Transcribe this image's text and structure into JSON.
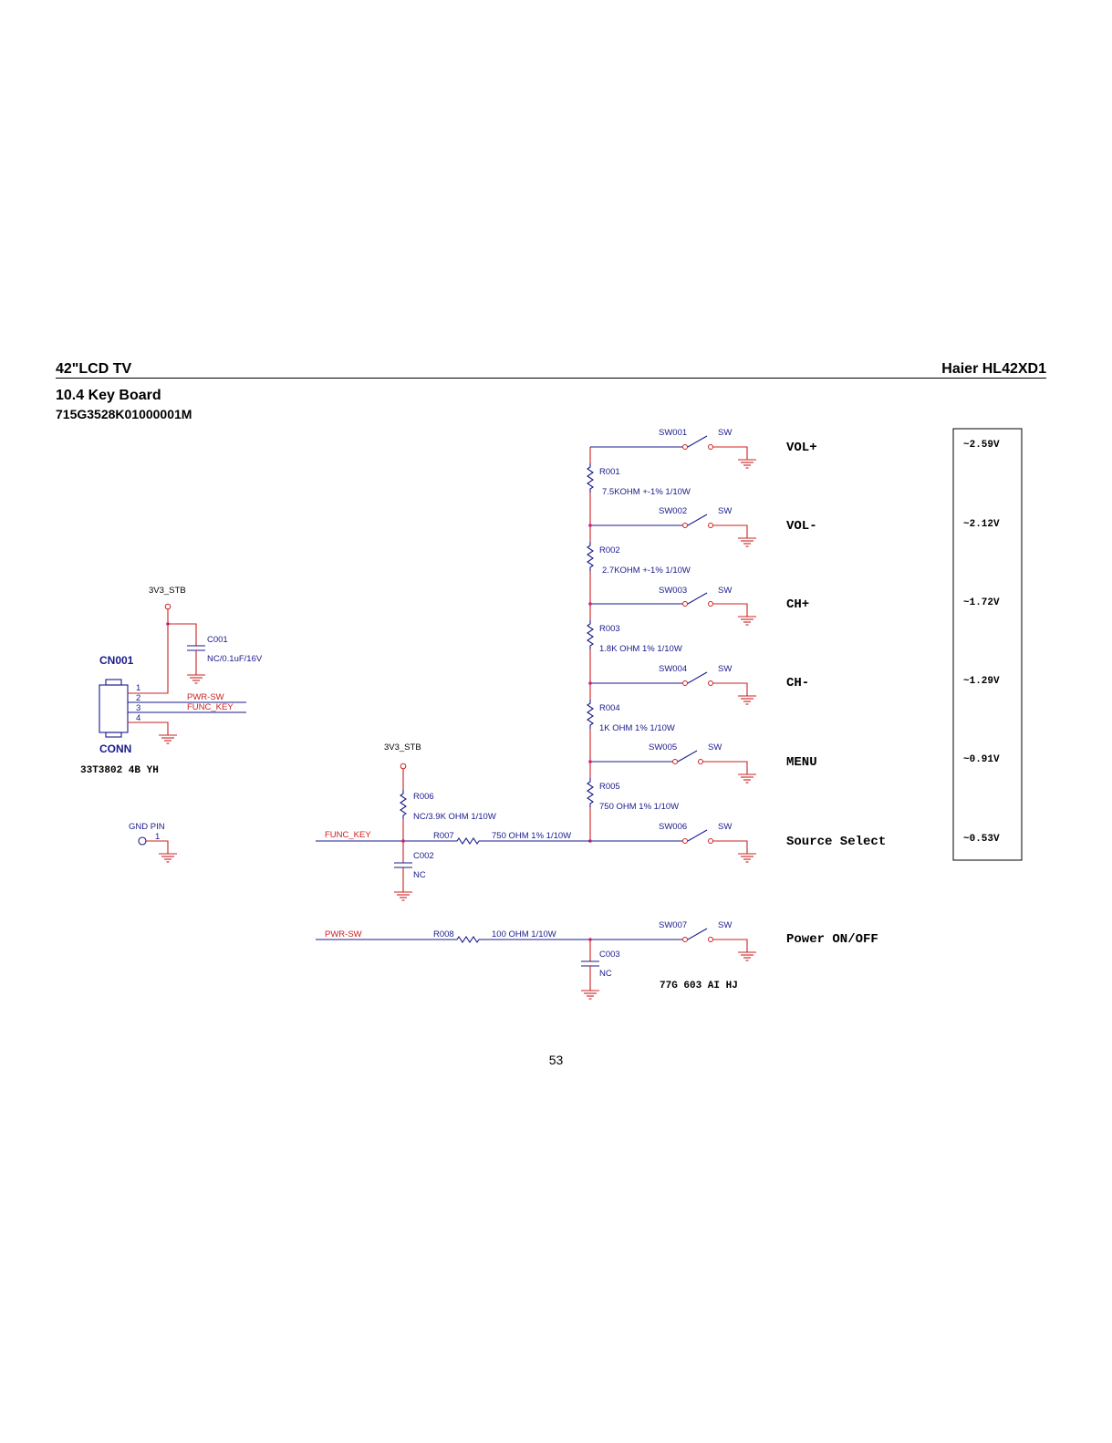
{
  "header": {
    "left": "42\"LCD TV",
    "right": "Haier HL42XD1"
  },
  "section": {
    "title": "10.4 Key Board",
    "part_number": "715G3528K01000001M"
  },
  "page_number": "53",
  "nets": {
    "v3_stb_a": "3V3_STB",
    "v3_stb_b": "3V3_STB",
    "pwr_sw_a": "PWR-SW",
    "func_key_a": "FUNC_KEY",
    "func_key_b": "FUNC_KEY",
    "pwr_sw_b": "PWR-SW"
  },
  "connector": {
    "ref": "CN001",
    "type": "CONN",
    "part": "33T3802 4B YH",
    "pins": [
      "1",
      "2",
      "3",
      "4"
    ]
  },
  "gnd_pin": {
    "label": "GND PIN",
    "pin": "1"
  },
  "capacitors": {
    "c001": {
      "ref": "C001",
      "value": "NC/0.1uF/16V"
    },
    "c002": {
      "ref": "C002",
      "value": "NC"
    },
    "c003": {
      "ref": "C003",
      "value": "NC"
    }
  },
  "resistors": {
    "r001": {
      "ref": "R001",
      "value": "7.5KOHM +-1% 1/10W"
    },
    "r002": {
      "ref": "R002",
      "value": "2.7KOHM +-1% 1/10W"
    },
    "r003": {
      "ref": "R003",
      "value": "1.8K OHM 1% 1/10W"
    },
    "r004": {
      "ref": "R004",
      "value": "1K OHM 1% 1/10W"
    },
    "r005": {
      "ref": "R005",
      "value": "750 OHM 1% 1/10W"
    },
    "r006": {
      "ref": "R006",
      "value": "NC/3.9K OHM 1/10W"
    },
    "r007": {
      "ref": "R007",
      "value": "750 OHM 1% 1/10W"
    },
    "r008": {
      "ref": "R008",
      "value": "100 OHM 1/10W"
    }
  },
  "switches": [
    {
      "ref": "SW001",
      "type": "SW",
      "function": "VOL+",
      "voltage": "~2.59V"
    },
    {
      "ref": "SW002",
      "type": "SW",
      "function": "VOL-",
      "voltage": "~2.12V"
    },
    {
      "ref": "SW003",
      "type": "SW",
      "function": "CH+",
      "voltage": "~1.72V"
    },
    {
      "ref": "SW004",
      "type": "SW",
      "function": "CH-",
      "voltage": "~1.29V"
    },
    {
      "ref": "SW005",
      "type": "SW",
      "function": "MENU",
      "voltage": "~0.91V"
    },
    {
      "ref": "SW006",
      "type": "SW",
      "function": "Source Select",
      "voltage": "~0.53V"
    },
    {
      "ref": "SW007",
      "type": "SW",
      "function": "Power ON/OFF",
      "voltage": ""
    }
  ],
  "switch_part": "77G 603 AI HJ",
  "colors": {
    "wire_blue": "#1a1a8c",
    "wire_red": "#cc2020",
    "junction": "#cc2080",
    "text": "#000000"
  }
}
